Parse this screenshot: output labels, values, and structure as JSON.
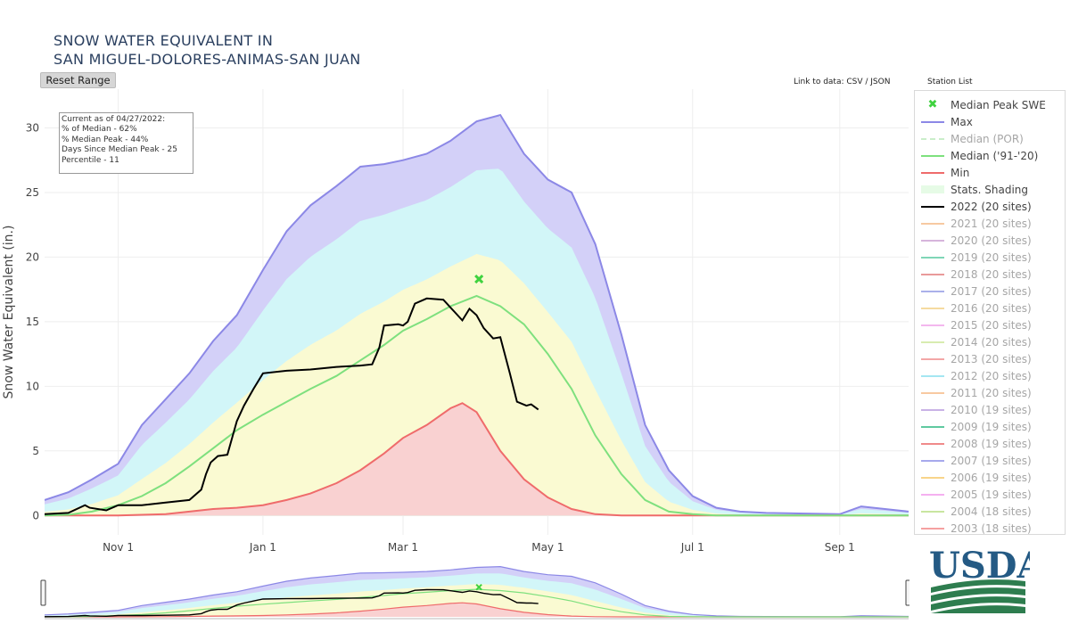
{
  "title_line1": "SNOW WATER EQUIVALENT IN",
  "title_line2": "SAN MIGUEL-DOLORES-ANIMAS-SAN JUAN",
  "reset_label": "Reset Range",
  "links_prefix": "Link to data: ",
  "link_csv": "CSV",
  "link_sep": " / ",
  "link_json": "JSON",
  "station_list_label": "Station List",
  "annotation": {
    "line1": "Current as of 04/27/2022:",
    "line2": "% of Median - 62%",
    "line3": "% Median Peak - 44%",
    "line4": "Days Since Median Peak - 25",
    "line5": "Percentile - 11"
  },
  "logo_text": "USDA",
  "legend": [
    {
      "label": "Median Peak SWE",
      "kind": "marker",
      "color": "#3fd23f",
      "active": true
    },
    {
      "label": "Max",
      "kind": "line",
      "color": "#8c88e6",
      "active": true
    },
    {
      "label": "Median (POR)",
      "kind": "dash",
      "color": "#c9eec9",
      "active": false
    },
    {
      "label": "Median ('91-'20)",
      "kind": "line",
      "color": "#7ee07e",
      "active": true
    },
    {
      "label": "Min",
      "kind": "line",
      "color": "#ef6b6b",
      "active": true
    },
    {
      "label": "Stats. Shading",
      "kind": "fill",
      "color": "#e6fbe6",
      "active": true
    },
    {
      "label": "2022 (20 sites)",
      "kind": "line",
      "color": "#000000",
      "active": true
    },
    {
      "label": "2021 (20 sites)",
      "kind": "line",
      "color": "#f7c9a1",
      "active": false
    },
    {
      "label": "2020 (20 sites)",
      "kind": "line",
      "color": "#d6b5dc",
      "active": false
    },
    {
      "label": "2019 (20 sites)",
      "kind": "line",
      "color": "#7fd6b7",
      "active": false
    },
    {
      "label": "2018 (20 sites)",
      "kind": "line",
      "color": "#e99a9a",
      "active": false
    },
    {
      "label": "2017 (20 sites)",
      "kind": "line",
      "color": "#aab0ea",
      "active": false
    },
    {
      "label": "2016 (20 sites)",
      "kind": "line",
      "color": "#f5dba0",
      "active": false
    },
    {
      "label": "2015 (20 sites)",
      "kind": "line",
      "color": "#f3b7ee",
      "active": false
    },
    {
      "label": "2014 (20 sites)",
      "kind": "line",
      "color": "#d8ecb0",
      "active": false
    },
    {
      "label": "2013 (20 sites)",
      "kind": "line",
      "color": "#f3a7a7",
      "active": false
    },
    {
      "label": "2012 (20 sites)",
      "kind": "line",
      "color": "#a4e6f2",
      "active": false
    },
    {
      "label": "2011 (20 sites)",
      "kind": "line",
      "color": "#f8c9a1",
      "active": false
    },
    {
      "label": "2010 (19 sites)",
      "kind": "line",
      "color": "#c9b2e6",
      "active": false
    },
    {
      "label": "2009 (19 sites)",
      "kind": "line",
      "color": "#5fc9a0",
      "active": false
    },
    {
      "label": "2008 (19 sites)",
      "kind": "line",
      "color": "#f08a8a",
      "active": false
    },
    {
      "label": "2007 (19 sites)",
      "kind": "line",
      "color": "#a7a9ec",
      "active": false
    },
    {
      "label": "2006 (19 sites)",
      "kind": "line",
      "color": "#f8d48a",
      "active": false
    },
    {
      "label": "2005 (19 sites)",
      "kind": "line",
      "color": "#f5b0f0",
      "active": false
    },
    {
      "label": "2004 (18 sites)",
      "kind": "line",
      "color": "#c9e6a0",
      "active": false
    },
    {
      "label": "2003 (18 sites)",
      "kind": "line",
      "color": "#f5a0a0",
      "active": false
    }
  ],
  "chart_data": {
    "type": "area",
    "title": "SNOW WATER EQUIVALENT IN SAN MIGUEL-DOLORES-ANIMAS-SAN JUAN",
    "xlabel": "",
    "ylabel": "Snow Water Equivalent (in.)",
    "x_range": [
      "2021-10-01",
      "2022-09-30"
    ],
    "ylim": [
      -1.5,
      33
    ],
    "yticks": [
      0,
      5,
      10,
      15,
      20,
      25,
      30
    ],
    "xticks": [
      {
        "label": "Nov 1",
        "date": "2021-11-01"
      },
      {
        "label": "Jan 1",
        "date": "2022-01-01"
      },
      {
        "label": "Mar 1",
        "date": "2022-03-01"
      },
      {
        "label": "May 1",
        "date": "2022-05-01"
      },
      {
        "label": "Jul 1",
        "date": "2022-07-01"
      },
      {
        "label": "Sep 1",
        "date": "2022-09-01"
      }
    ],
    "grid": true,
    "legend_position": "right",
    "median_peak": {
      "date": "2022-04-02",
      "value": 18.3
    },
    "series": [
      {
        "name": "Max",
        "color": "#8c88e6",
        "x": [
          "2021-10-01",
          "2021-10-11",
          "2021-10-21",
          "2021-11-01",
          "2021-11-11",
          "2021-11-21",
          "2021-12-01",
          "2021-12-11",
          "2021-12-21",
          "2022-01-01",
          "2022-01-11",
          "2022-01-21",
          "2022-02-01",
          "2022-02-11",
          "2022-02-21",
          "2022-03-01",
          "2022-03-11",
          "2022-03-21",
          "2022-04-01",
          "2022-04-11",
          "2022-04-21",
          "2022-05-01",
          "2022-05-11",
          "2022-05-21",
          "2022-06-01",
          "2022-06-11",
          "2022-06-21",
          "2022-07-01",
          "2022-07-11",
          "2022-07-21",
          "2022-08-01",
          "2022-09-01",
          "2022-09-10",
          "2022-09-20",
          "2022-09-30"
        ],
        "values": [
          1.2,
          1.8,
          2.8,
          4,
          7,
          9,
          11,
          13.5,
          15.5,
          19,
          22,
          24,
          25.5,
          27,
          27.2,
          27.5,
          28,
          29,
          30.5,
          31,
          28,
          26,
          25,
          21,
          14,
          7,
          3.5,
          1.5,
          0.6,
          0.3,
          0.2,
          0.1,
          0.7,
          0.5,
          0.3
        ]
      },
      {
        "name": "Median ('91-'20)",
        "color": "#7ee07e",
        "x": [
          "2021-10-01",
          "2021-10-11",
          "2021-10-21",
          "2021-11-01",
          "2021-11-11",
          "2021-11-21",
          "2021-12-01",
          "2021-12-11",
          "2021-12-21",
          "2022-01-01",
          "2022-01-11",
          "2022-01-21",
          "2022-02-01",
          "2022-02-11",
          "2022-02-21",
          "2022-03-01",
          "2022-03-11",
          "2022-03-21",
          "2022-04-01",
          "2022-04-11",
          "2022-04-21",
          "2022-05-01",
          "2022-05-11",
          "2022-05-21",
          "2022-06-01",
          "2022-06-11",
          "2022-06-21",
          "2022-07-01",
          "2022-07-11",
          "2022-07-21",
          "2022-08-01",
          "2022-09-01",
          "2022-09-30"
        ],
        "values": [
          0,
          0.05,
          0.3,
          0.8,
          1.5,
          2.5,
          3.8,
          5.2,
          6.6,
          7.8,
          8.8,
          9.8,
          10.8,
          12,
          13.2,
          14.3,
          15.2,
          16.2,
          17,
          16.2,
          14.8,
          12.5,
          9.8,
          6.2,
          3.2,
          1.2,
          0.3,
          0.1,
          0,
          0,
          0,
          0,
          0
        ]
      },
      {
        "name": "Min",
        "color": "#ef6b6b",
        "x": [
          "2021-10-01",
          "2021-11-01",
          "2021-11-21",
          "2021-12-01",
          "2021-12-11",
          "2021-12-21",
          "2022-01-01",
          "2022-01-11",
          "2022-01-21",
          "2022-02-01",
          "2022-02-11",
          "2022-02-21",
          "2022-03-01",
          "2022-03-11",
          "2022-03-21",
          "2022-03-26",
          "2022-04-01",
          "2022-04-11",
          "2022-04-21",
          "2022-05-01",
          "2022-05-11",
          "2022-05-21",
          "2022-06-01",
          "2022-09-30"
        ],
        "values": [
          0,
          0,
          0.1,
          0.3,
          0.5,
          0.6,
          0.8,
          1.2,
          1.7,
          2.5,
          3.5,
          4.8,
          6,
          7,
          8.3,
          8.7,
          8,
          5,
          2.8,
          1.4,
          0.5,
          0.1,
          0,
          0
        ]
      },
      {
        "name": "2022 (20 sites)",
        "color": "#000000",
        "x": [
          "2021-10-01",
          "2021-10-11",
          "2021-10-18",
          "2021-10-20",
          "2021-10-27",
          "2021-11-01",
          "2021-11-11",
          "2021-11-21",
          "2021-12-01",
          "2021-12-06",
          "2021-12-08",
          "2021-12-10",
          "2021-12-13",
          "2021-12-17",
          "2021-12-21",
          "2021-12-24",
          "2021-12-28",
          "2022-01-01",
          "2022-01-11",
          "2022-01-21",
          "2022-02-01",
          "2022-02-11",
          "2022-02-16",
          "2022-02-19",
          "2022-02-21",
          "2022-02-27",
          "2022-03-01",
          "2022-03-03",
          "2022-03-06",
          "2022-03-11",
          "2022-03-18",
          "2022-03-21",
          "2022-03-26",
          "2022-03-29",
          "2022-04-01",
          "2022-04-04",
          "2022-04-08",
          "2022-04-11",
          "2022-04-15",
          "2022-04-18",
          "2022-04-22",
          "2022-04-24",
          "2022-04-27"
        ],
        "values": [
          0.1,
          0.2,
          0.8,
          0.6,
          0.4,
          0.8,
          0.8,
          1,
          1.2,
          2,
          3.2,
          4.1,
          4.6,
          4.7,
          7.3,
          8.5,
          9.8,
          11,
          11.2,
          11.3,
          11.5,
          11.6,
          11.7,
          13,
          14.7,
          14.8,
          14.7,
          15,
          16.4,
          16.8,
          16.7,
          16.1,
          15.1,
          16,
          15.5,
          14.5,
          13.7,
          13.8,
          11,
          8.8,
          8.5,
          8.6,
          8.2
        ]
      }
    ]
  }
}
